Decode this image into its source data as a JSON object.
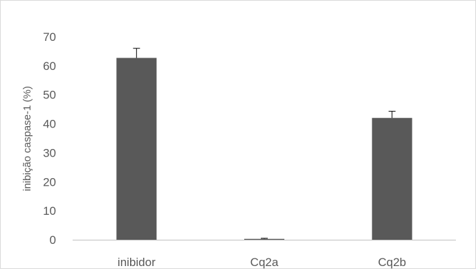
{
  "chart_data": {
    "type": "bar",
    "title": "",
    "xlabel": "",
    "ylabel": "inibição caspase-1  (%)",
    "categories": [
      "inibidor",
      "Cq2a",
      "Cq2b"
    ],
    "values": [
      62.7,
      0.3,
      42.0
    ],
    "errors": [
      3.3,
      0.2,
      2.3
    ],
    "ylim": [
      0,
      70
    ],
    "yticks": [
      0,
      10,
      20,
      30,
      40,
      50,
      60,
      70
    ],
    "ytick_labels": [
      "0",
      "10",
      "20",
      "30",
      "40",
      "50",
      "60",
      "70"
    ],
    "grid": false,
    "legend": "none",
    "bar_color": "#595959",
    "axis_color": "#bfbfbf"
  }
}
